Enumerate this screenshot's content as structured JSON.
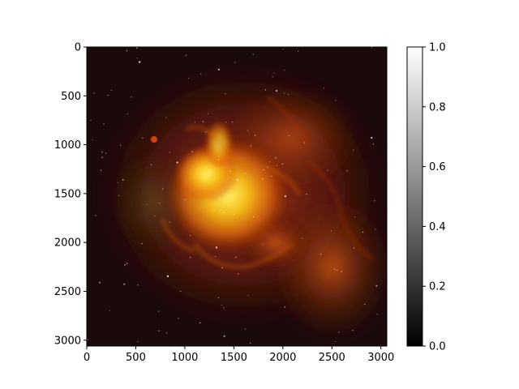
{
  "chart_data": {
    "type": "heatmap",
    "title": "",
    "xlabel": "",
    "ylabel": "",
    "image": {
      "subject": "emission nebula (red-orange-yellow glowing gas cloud with star field)",
      "extent_x": [
        0,
        3060
      ],
      "extent_y": [
        3060,
        0
      ],
      "y_axis_inverted": true,
      "palette": [
        "#1a0a0c",
        "#6a1a0e",
        "#b8360a",
        "#e8740e",
        "#f8c21a",
        "#fff25a"
      ]
    },
    "x_ticks": [
      0,
      500,
      1000,
      1500,
      2000,
      2500,
      3000
    ],
    "x_tick_labels": [
      "0",
      "500",
      "1000",
      "1500",
      "2000",
      "2500",
      "3000"
    ],
    "y_ticks": [
      0,
      500,
      1000,
      1500,
      2000,
      2500,
      3000
    ],
    "y_tick_labels": [
      "0",
      "500",
      "1000",
      "1500",
      "2000",
      "2500",
      "3000"
    ],
    "colorbar": {
      "colormap": "gray",
      "range": [
        0.0,
        1.0
      ],
      "ticks": [
        0.0,
        0.2,
        0.4,
        0.6,
        0.8,
        1.0
      ],
      "tick_labels": [
        "0.0",
        "0.2",
        "0.4",
        "0.6",
        "0.8",
        "1.0"
      ],
      "colors": [
        "#000000",
        "#ffffff"
      ]
    }
  }
}
